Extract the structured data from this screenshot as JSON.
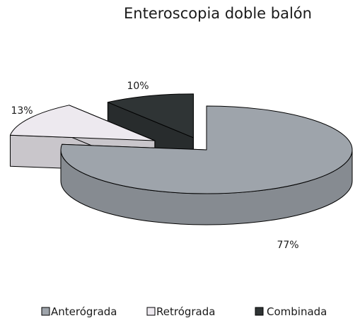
{
  "chart_data": {
    "type": "pie",
    "title": "Enteroscopia doble balón",
    "exploded": true,
    "three_d": true,
    "legend_position": "bottom",
    "slices": [
      {
        "name": "Anterógrada",
        "value": 77,
        "label": "77%",
        "color": "#9ea4ab"
      },
      {
        "name": "Retrógrada",
        "value": 13,
        "label": "13%",
        "color": "#ede9ef"
      },
      {
        "name": "Combinada",
        "value": 10,
        "label": "10%",
        "color": "#2f3435"
      }
    ]
  }
}
